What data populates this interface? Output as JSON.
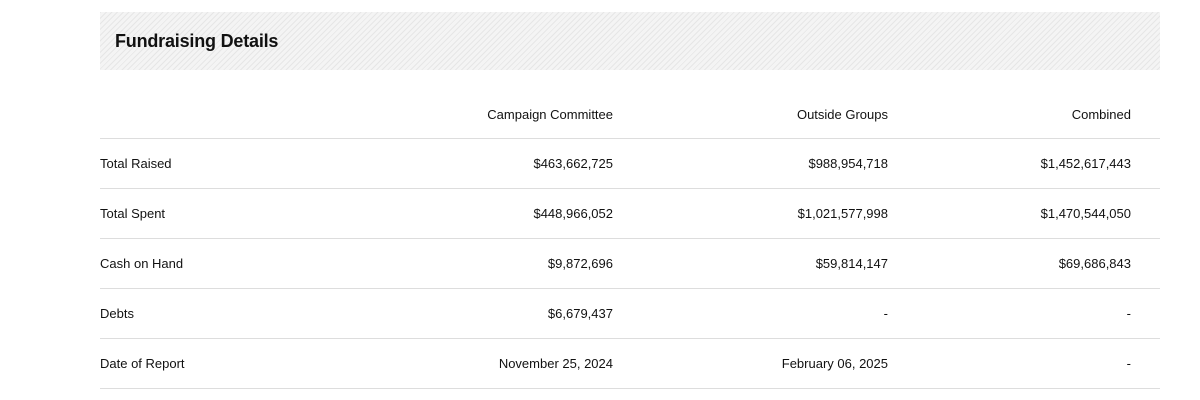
{
  "section": {
    "title": "Fundraising Details"
  },
  "table": {
    "headers": {
      "campaign": "Campaign Committee",
      "outside": "Outside Groups",
      "combined": "Combined"
    },
    "rows": [
      {
        "label": "Total Raised",
        "campaign": "$463,662,725",
        "outside": "$988,954,718",
        "combined": "$1,452,617,443"
      },
      {
        "label": "Total Spent",
        "campaign": "$448,966,052",
        "outside": "$1,021,577,998",
        "combined": "$1,470,544,050"
      },
      {
        "label": "Cash on Hand",
        "campaign": "$9,872,696",
        "outside": "$59,814,147",
        "combined": "$69,686,843"
      },
      {
        "label": "Debts",
        "campaign": "$6,679,437",
        "outside": "-",
        "combined": "-"
      },
      {
        "label": "Date of Report",
        "campaign": "November 25, 2024",
        "outside": "February 06, 2025",
        "combined": "-"
      }
    ]
  }
}
